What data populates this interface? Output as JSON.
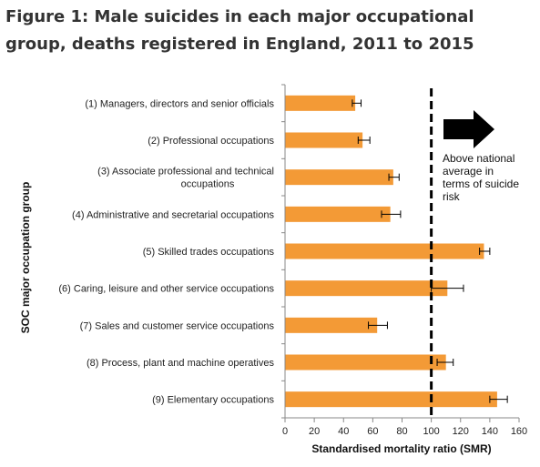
{
  "figure": {
    "title": "Figure 1: Male suicides in each major occupational group, deaths registered in England, 2011 to 2015"
  },
  "chart_data": {
    "type": "bar",
    "orientation": "horizontal",
    "ylabel": "SOC major occupation group",
    "xlabel": "Standardised mortality ratio (SMR)",
    "xlim": [
      0,
      160
    ],
    "xticks": [
      "0",
      "20",
      "40",
      "60",
      "80",
      "100",
      "120",
      "140",
      "160"
    ],
    "grid": false,
    "bar_color": "#f39a36",
    "categories": [
      [
        "(1) Managers, directors and senior officials"
      ],
      [
        "(2) Professional occupations"
      ],
      [
        "(3) Associate professional and technical",
        "occupations"
      ],
      [
        "(4) Administrative and secretarial occupations"
      ],
      [
        "(5) Skilled trades occupations"
      ],
      [
        "(6) Caring, leisure and other service occupations"
      ],
      [
        "(7) Sales and customer service occupations"
      ],
      [
        "(8) Process, plant and machine operatives"
      ],
      [
        "(9) Elementary occupations"
      ]
    ],
    "values": [
      48,
      53,
      74,
      72,
      136,
      111,
      63,
      110,
      145
    ],
    "error_low": [
      46,
      50,
      71,
      66,
      133,
      100,
      57,
      104,
      140
    ],
    "error_high": [
      52,
      58,
      78,
      79,
      140,
      122,
      70,
      115,
      152
    ],
    "reference_line": {
      "value": 100,
      "style": "dashed",
      "color": "#000000"
    },
    "annotation": {
      "lines": [
        "Above national",
        "average in",
        "terms of suicide",
        "risk"
      ],
      "icon": "right-arrow-icon"
    }
  }
}
